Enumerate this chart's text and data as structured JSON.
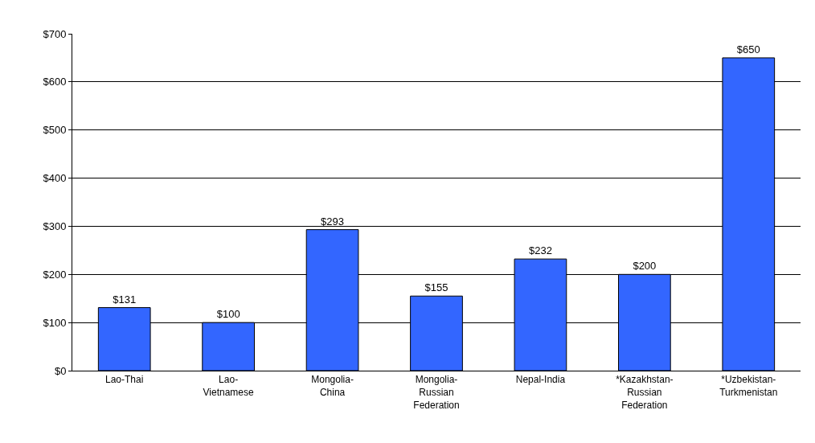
{
  "chart_data": {
    "type": "bar",
    "categories": [
      "Lao-Thai",
      "Lao-Vietnamese",
      "Mongolia-China",
      "Mongolia-Russian Federation",
      "Nepal-India",
      "*Kazakhstan-Russian Federation",
      "*Uzbekistan-Turkmenistan"
    ],
    "values": [
      131,
      100,
      293,
      155,
      232,
      200,
      650
    ],
    "color": "#3366ff",
    "ylim": [
      0,
      700
    ],
    "yticks": [
      {
        "value": 0,
        "label": "$0"
      },
      {
        "value": 100,
        "label": "$100"
      },
      {
        "value": 200,
        "label": "$200"
      },
      {
        "value": 300,
        "label": "$300"
      },
      {
        "value": 400,
        "label": "$400"
      },
      {
        "value": 500,
        "label": "$500"
      },
      {
        "value": 600,
        "label": "$600"
      },
      {
        "value": 700,
        "label": "$700"
      }
    ],
    "value_labels": [
      "$131",
      "$100",
      "$293",
      "$155",
      "$232",
      "$200",
      "$650"
    ],
    "grid": "y",
    "legend": false
  }
}
